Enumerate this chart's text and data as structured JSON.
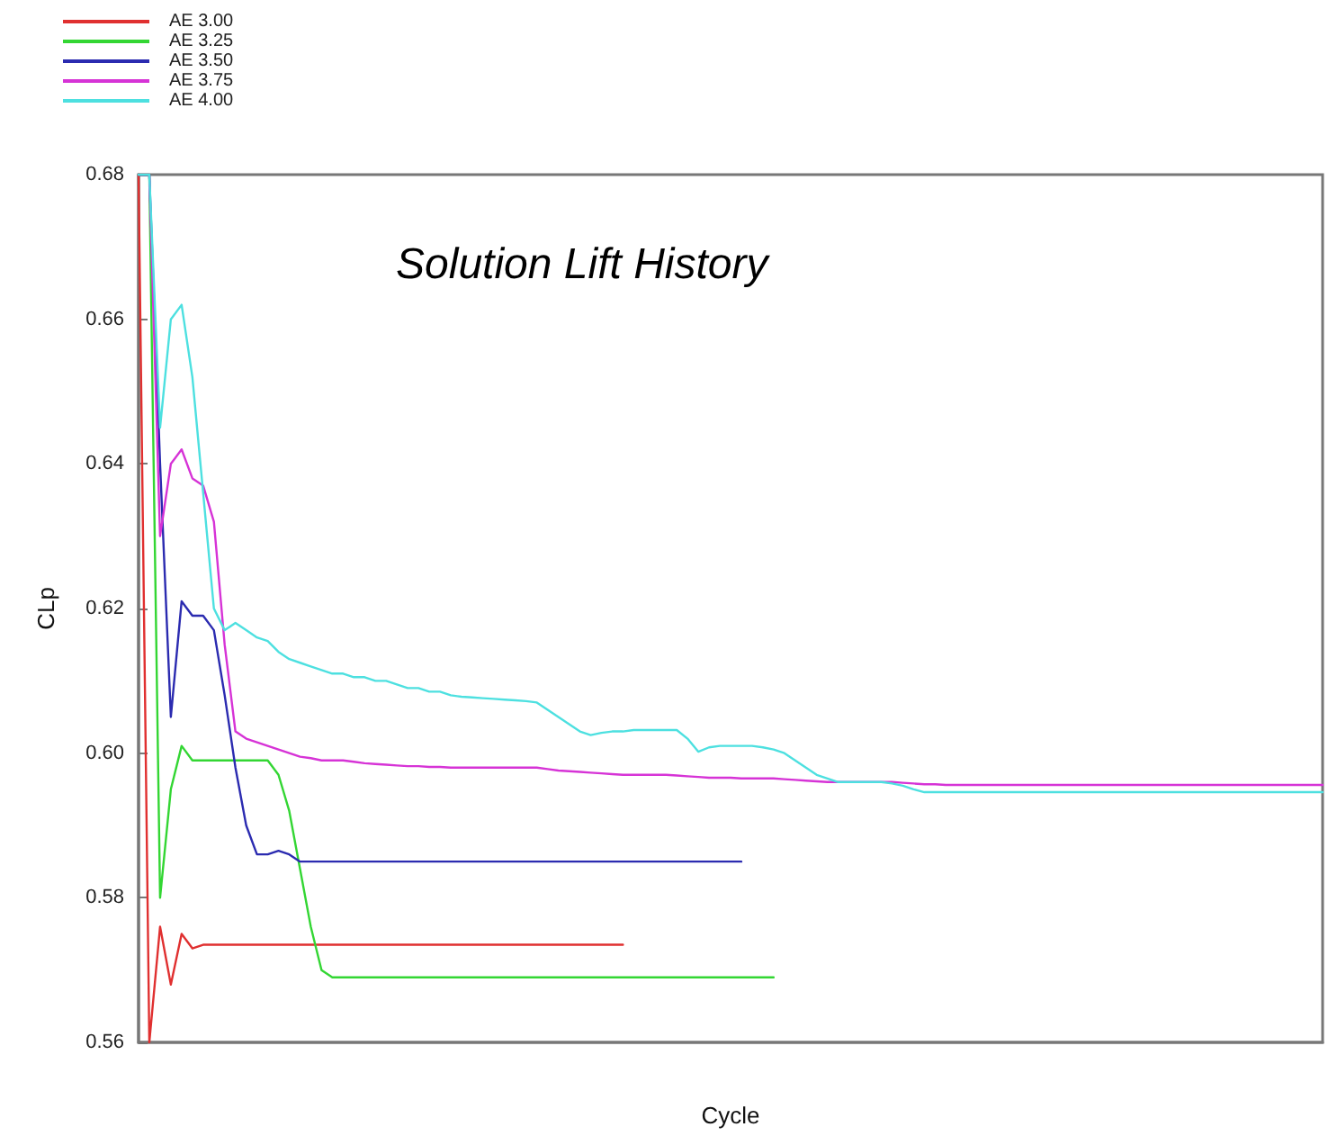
{
  "chart_data": {
    "type": "line",
    "title": "Solution Lift History",
    "xlabel": "Cycle",
    "ylabel": "CLp",
    "categories": [
      null,
      null,
      null,
      null,
      null,
      null,
      null,
      null,
      null,
      null,
      null,
      null,
      null,
      null,
      null,
      null,
      null,
      null,
      null,
      null,
      null,
      null,
      null,
      null,
      null,
      null,
      null,
      null,
      null,
      null,
      null,
      null,
      null,
      null,
      null,
      null,
      null,
      null,
      null,
      null,
      null,
      null,
      null,
      null,
      null,
      null,
      null,
      null,
      null,
      null,
      null,
      null,
      null,
      null,
      null,
      null,
      null,
      null,
      null,
      null,
      null,
      null,
      null,
      null,
      null,
      null,
      null,
      null,
      null,
      null,
      null,
      null,
      null,
      null,
      null,
      null,
      null,
      null,
      null,
      null,
      null,
      null,
      null,
      null,
      null,
      null,
      null,
      null,
      null,
      null,
      null,
      null,
      null,
      null,
      null,
      null,
      null,
      null,
      null,
      null,
      null,
      null,
      null,
      null,
      null,
      null,
      null,
      null,
      null,
      null,
      null
    ],
    "series": [
      {
        "name": "AE 3.00",
        "color": "#e03030",
        "values": [
          0.68,
          0.56,
          0.576,
          0.568,
          0.575,
          0.573,
          0.5735,
          0.5735,
          0.5735,
          0.5735,
          0.5735,
          0.5735,
          0.5735,
          0.5735,
          0.5735,
          0.5735,
          0.5735,
          0.5735,
          0.5735,
          0.5735,
          0.5735,
          0.5735,
          0.5735,
          0.5735,
          0.5735,
          0.5735,
          0.5735,
          0.5735,
          0.5735,
          0.5735,
          0.5735,
          0.5735,
          0.5735,
          0.5735,
          0.5735,
          0.5735,
          0.5735,
          0.5735,
          0.5735,
          0.5735,
          0.5735,
          0.5735,
          0.5735,
          0.5735,
          0.5735,
          0.5735,
          null,
          null,
          null,
          null,
          null,
          null,
          null,
          null,
          null,
          null,
          null,
          null,
          null,
          null,
          null,
          null,
          null,
          null,
          null,
          null,
          null,
          null,
          null,
          null,
          null,
          null,
          null,
          null,
          null,
          null,
          null,
          null,
          null,
          null,
          null,
          null,
          null,
          null,
          null,
          null,
          null,
          null,
          null,
          null,
          null,
          null,
          null,
          null,
          null,
          null,
          null,
          null,
          null,
          null,
          null,
          null,
          null,
          null,
          null,
          null,
          null,
          null,
          null,
          null,
          null
        ]
      },
      {
        "name": "AE 3.25",
        "color": "#33d633",
        "values": [
          0.68,
          0.68,
          0.58,
          0.595,
          0.601,
          0.599,
          0.599,
          0.599,
          0.599,
          0.599,
          0.599,
          0.599,
          0.599,
          0.597,
          0.592,
          0.584,
          0.576,
          0.57,
          0.569,
          0.569,
          0.569,
          0.569,
          0.569,
          0.569,
          0.569,
          0.569,
          0.569,
          0.569,
          0.569,
          0.569,
          0.569,
          0.569,
          0.569,
          0.569,
          0.569,
          0.569,
          0.569,
          0.569,
          0.569,
          0.569,
          0.569,
          0.569,
          0.569,
          0.569,
          0.569,
          0.569,
          0.569,
          0.569,
          0.569,
          0.569,
          0.569,
          0.569,
          0.569,
          0.569,
          0.569,
          0.569,
          0.569,
          0.569,
          0.569,
          0.569,
          null,
          null,
          null,
          null,
          null,
          null,
          null,
          null,
          null,
          null,
          null,
          null,
          null,
          null,
          null,
          null,
          null,
          null,
          null,
          null,
          null,
          null,
          null,
          null,
          null,
          null,
          null,
          null,
          null,
          null,
          null,
          null,
          null,
          null,
          null,
          null,
          null,
          null,
          null,
          null,
          null,
          null,
          null,
          null,
          null,
          null,
          null,
          null,
          null,
          null,
          null
        ]
      },
      {
        "name": "AE 3.50",
        "color": "#2b2bb0",
        "values": [
          0.68,
          0.68,
          0.64,
          0.605,
          0.621,
          0.619,
          0.619,
          0.617,
          0.608,
          0.598,
          0.59,
          0.586,
          0.586,
          0.5865,
          0.586,
          0.585,
          0.585,
          0.585,
          0.585,
          0.585,
          0.585,
          0.585,
          0.585,
          0.585,
          0.585,
          0.585,
          0.585,
          0.585,
          0.585,
          0.585,
          0.585,
          0.585,
          0.585,
          0.585,
          0.585,
          0.585,
          0.585,
          0.585,
          0.585,
          0.585,
          0.585,
          0.585,
          0.585,
          0.585,
          0.585,
          0.585,
          0.585,
          0.585,
          0.585,
          0.585,
          0.585,
          0.585,
          0.585,
          0.585,
          0.585,
          0.585,
          0.585,
          null,
          null,
          null,
          null,
          null,
          null,
          null,
          null,
          null,
          null,
          null,
          null,
          null,
          null,
          null,
          null,
          null,
          null,
          null,
          null,
          null,
          null,
          null,
          null,
          null,
          null,
          null,
          null,
          null,
          null,
          null,
          null,
          null,
          null,
          null,
          null,
          null,
          null,
          null,
          null,
          null,
          null,
          null,
          null,
          null,
          null,
          null,
          null,
          null,
          null,
          null,
          null,
          null,
          null
        ]
      },
      {
        "name": "AE 3.75",
        "color": "#d633d6",
        "values": [
          0.68,
          0.68,
          0.63,
          0.64,
          0.642,
          0.638,
          0.637,
          0.632,
          0.615,
          0.603,
          0.602,
          0.6015,
          0.601,
          0.6005,
          0.6,
          0.5995,
          0.5993,
          0.599,
          0.599,
          0.599,
          0.5988,
          0.5986,
          0.5985,
          0.5984,
          0.5983,
          0.5982,
          0.5982,
          0.5981,
          0.5981,
          0.598,
          0.598,
          0.598,
          0.598,
          0.598,
          0.598,
          0.598,
          0.598,
          0.598,
          0.5978,
          0.5976,
          0.5975,
          0.5974,
          0.5973,
          0.5972,
          0.5971,
          0.597,
          0.597,
          0.597,
          0.597,
          0.597,
          0.5969,
          0.5968,
          0.5967,
          0.5966,
          0.5966,
          0.5966,
          0.5965,
          0.5965,
          0.5965,
          0.5965,
          0.5964,
          0.5963,
          0.5962,
          0.5961,
          0.596,
          0.596,
          0.596,
          0.596,
          0.596,
          0.596,
          0.596,
          0.5959,
          0.5958,
          0.5957,
          0.5957,
          0.5956,
          0.5956,
          0.5956,
          0.5956,
          0.5956,
          0.5956,
          0.5956,
          0.5956,
          0.5956,
          0.5956,
          0.5956,
          0.5956,
          0.5956,
          0.5956,
          0.5956,
          0.5956,
          0.5956,
          0.5956,
          0.5956,
          0.5956,
          0.5956,
          0.5956,
          0.5956,
          0.5956,
          0.5956,
          0.5956,
          0.5956,
          0.5956,
          0.5956,
          0.5956,
          0.5956,
          0.5956,
          0.5956,
          0.5956,
          0.5956,
          0.5956
        ]
      },
      {
        "name": "AE 4.00",
        "color": "#4de0e0",
        "values": [
          0.68,
          0.68,
          0.645,
          0.66,
          0.662,
          0.652,
          0.636,
          0.62,
          0.617,
          0.618,
          0.617,
          0.616,
          0.6155,
          0.614,
          0.613,
          0.6125,
          0.612,
          0.6115,
          0.611,
          0.611,
          0.6105,
          0.6105,
          0.61,
          0.61,
          0.6095,
          0.609,
          0.609,
          0.6085,
          0.6085,
          0.608,
          0.6078,
          0.6077,
          0.6076,
          0.6075,
          0.6074,
          0.6073,
          0.6072,
          0.607,
          0.606,
          0.605,
          0.604,
          0.603,
          0.6025,
          0.6028,
          0.603,
          0.603,
          0.6032,
          0.6032,
          0.6032,
          0.6032,
          0.6032,
          0.602,
          0.6002,
          0.6008,
          0.601,
          0.601,
          0.601,
          0.601,
          0.6008,
          0.6005,
          0.6,
          0.599,
          0.598,
          0.597,
          0.5965,
          0.596,
          0.596,
          0.596,
          0.596,
          0.596,
          0.5958,
          0.5955,
          0.595,
          0.5946,
          0.5946,
          0.5946,
          0.5946,
          0.5946,
          0.5946,
          0.5946,
          0.5946,
          0.5946,
          0.5946,
          0.5946,
          0.5946,
          0.5946,
          0.5946,
          0.5946,
          0.5946,
          0.5946,
          0.5946,
          0.5946,
          0.5946,
          0.5946,
          0.5946,
          0.5946,
          0.5946,
          0.5946,
          0.5946,
          0.5946,
          0.5946,
          0.5946,
          0.5946,
          0.5946,
          0.5946,
          0.5946,
          0.5946,
          0.5946,
          0.5946,
          0.5946,
          0.5946
        ]
      }
    ],
    "ylim": [
      0.56,
      0.68
    ],
    "yticks": [
      0.56,
      0.58,
      {
        "value": 0.6,
        "label": "0.60"
      },
      0.62,
      0.64,
      0.66,
      0.68
    ],
    "legend": "top left"
  }
}
